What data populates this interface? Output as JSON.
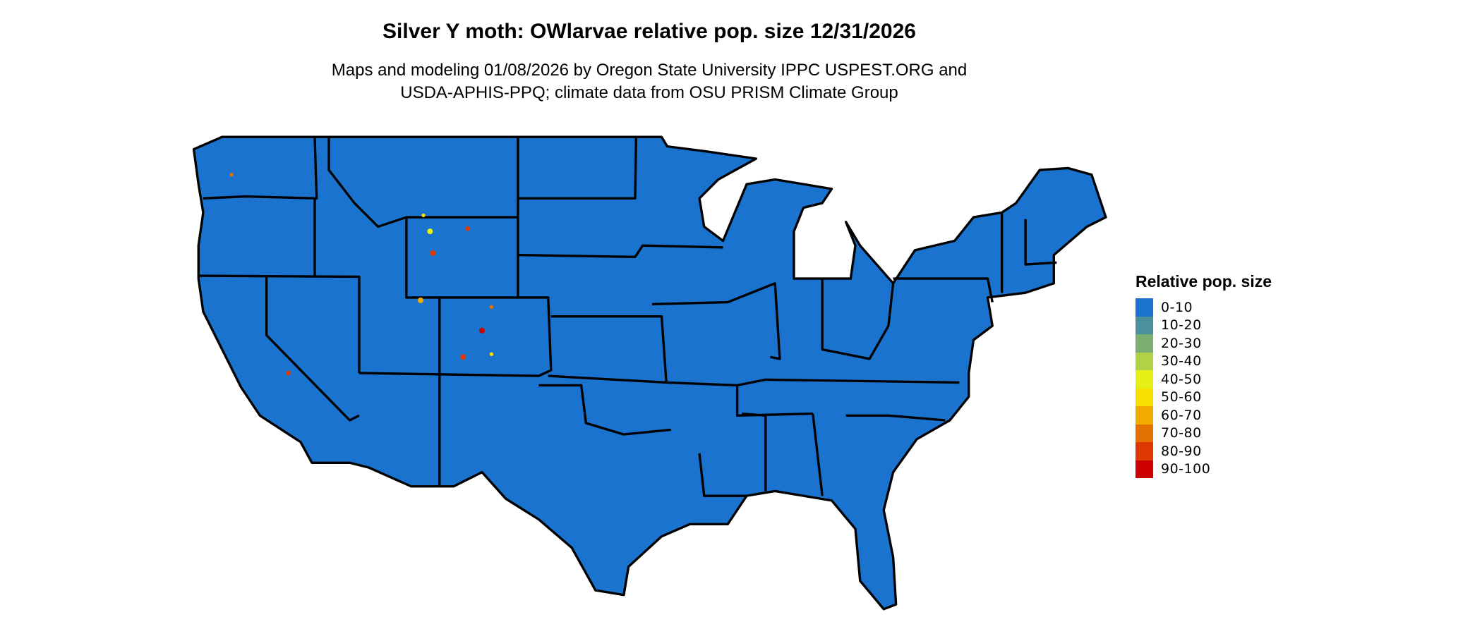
{
  "title": "Silver Y moth: OWlarvae relative pop. size 12/31/2026",
  "subtitle_line1": "Maps and modeling 01/08/2026 by Oregon State University IPPC USPEST.ORG and",
  "subtitle_line2": "USDA-APHIS-PPQ; climate data from OSU PRISM Climate Group",
  "map": {
    "region": "Contiguous United States",
    "base_fill": "#1a73cf",
    "border_color": "#000000"
  },
  "legend": {
    "title": "Relative pop. size",
    "items": [
      {
        "label": "0-10",
        "color": "#1a73cf"
      },
      {
        "label": "10-20",
        "color": "#4a919b"
      },
      {
        "label": "20-30",
        "color": "#7baf72"
      },
      {
        "label": "30-40",
        "color": "#b2d146"
      },
      {
        "label": "40-50",
        "color": "#e5f016"
      },
      {
        "label": "50-60",
        "color": "#f8e000"
      },
      {
        "label": "60-70",
        "color": "#f0aa00"
      },
      {
        "label": "70-80",
        "color": "#e47200"
      },
      {
        "label": "80-90",
        "color": "#dc3800"
      },
      {
        "label": "90-100",
        "color": "#cc0000"
      }
    ]
  }
}
